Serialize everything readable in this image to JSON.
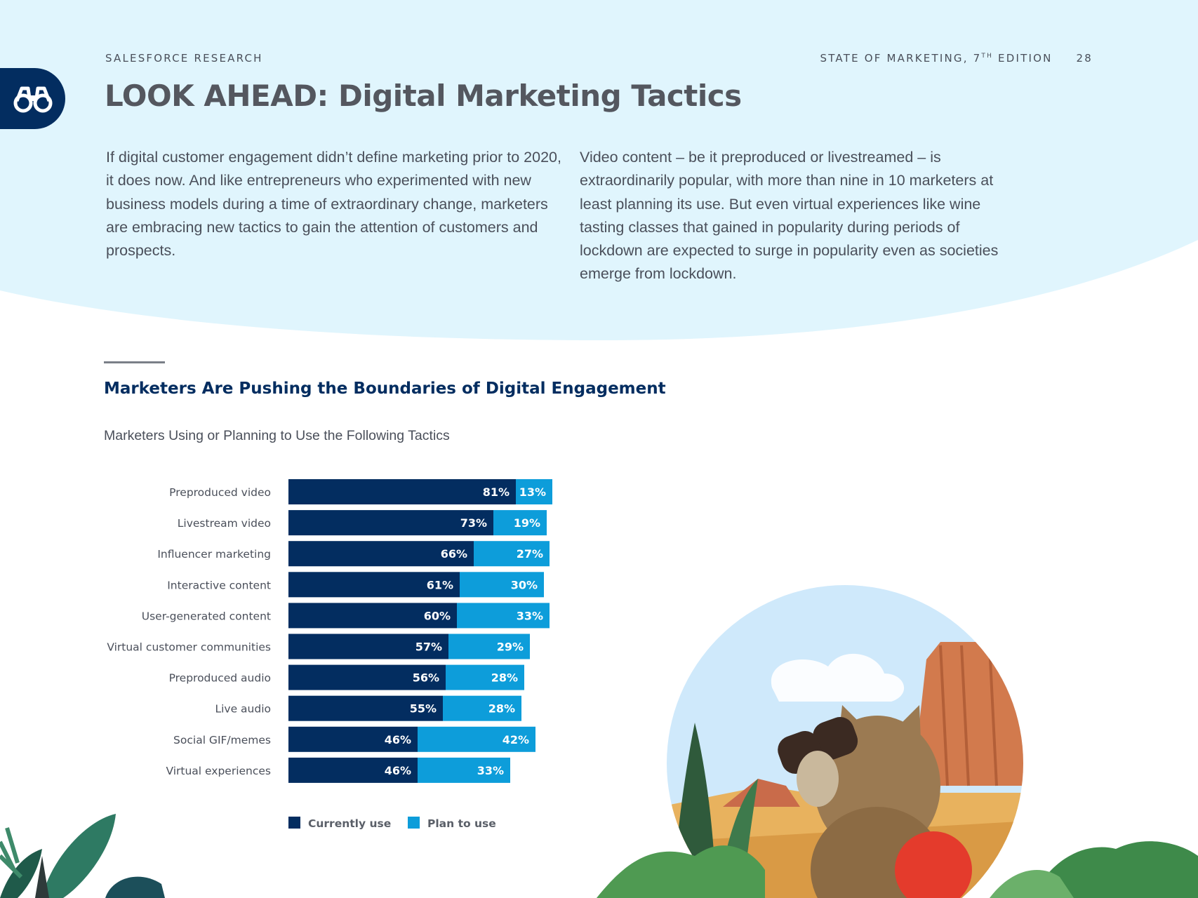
{
  "header": {
    "left": "SALESFORCE RESEARCH",
    "right_prefix": "STATE OF MARKETING, 7",
    "right_sup": "TH",
    "right_suffix": " EDITION",
    "page_number": "28"
  },
  "badge_icon": "binoculars-icon",
  "title": "LOOK AHEAD: Digital Marketing Tactics",
  "intro": {
    "left": "If digital customer engagement didn’t define marketing prior to 2020, it does now. And like entrepreneurs who experimented with new business models during a time of extraordinary change, marketers are embracing new tactics to gain the attention of customers and prospects.",
    "right": "Video content – be it preproduced or livestreamed – is extraordinarily popular, with more than nine in 10 marketers at least planning its use. But even virtual experiences like wine tasting classes that gained in popularity during periods of lockdown are expected to surge in popularity even as societies emerge from lockdown."
  },
  "colors": {
    "background_wave": "#e0f5fd",
    "navy": "#032d60",
    "blue": "#0d9dda"
  },
  "chart_data": {
    "type": "bar",
    "orientation": "horizontal",
    "stacked": true,
    "title": "Marketers Are Pushing the Boundaries of Digital Engagement",
    "subtitle": "Marketers Using or Planning to Use the Following Tactics",
    "categories": [
      "Preproduced video",
      "Livestream video",
      "Influencer marketing",
      "Interactive content",
      "User-generated content",
      "Virtual customer communities",
      "Preproduced audio",
      "Live audio",
      "Social GIF/memes",
      "Virtual experiences"
    ],
    "series": [
      {
        "name": "Currently use",
        "color": "#032d60",
        "values": [
          81,
          73,
          66,
          61,
          60,
          57,
          56,
          55,
          46,
          46
        ]
      },
      {
        "name": "Plan to use",
        "color": "#0d9dda",
        "values": [
          13,
          19,
          27,
          30,
          33,
          29,
          28,
          28,
          42,
          33
        ]
      }
    ],
    "value_suffix": "%",
    "legend_position": "bottom",
    "grid": false
  }
}
